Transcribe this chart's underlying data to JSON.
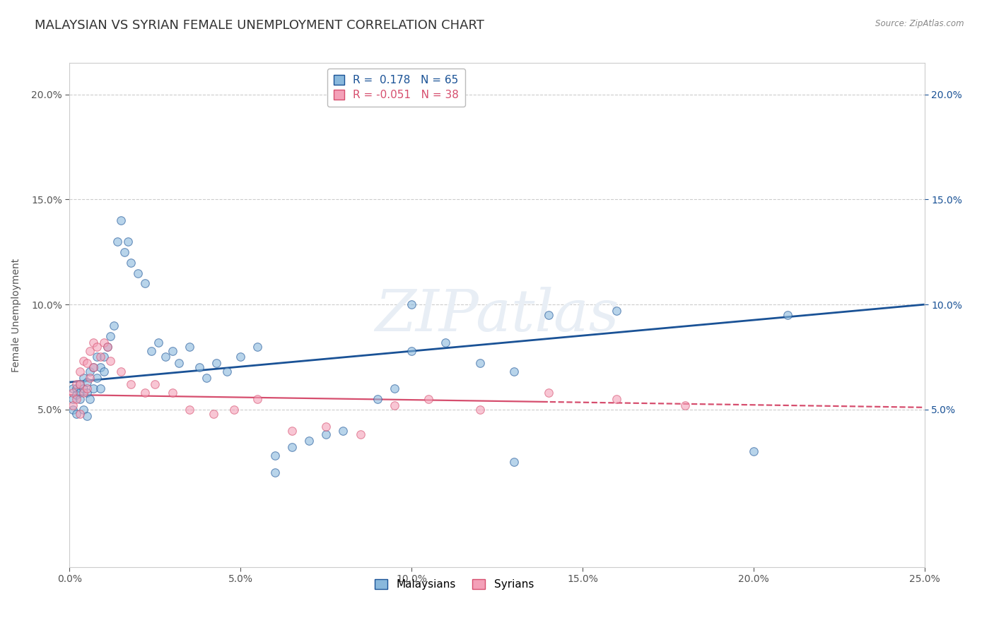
{
  "title": "MALAYSIAN VS SYRIAN FEMALE UNEMPLOYMENT CORRELATION CHART",
  "source_text": "Source: ZipAtlas.com",
  "ylabel": "Female Unemployment",
  "xlim": [
    0.0,
    0.25
  ],
  "ylim": [
    -0.025,
    0.215
  ],
  "yticks": [
    0.05,
    0.1,
    0.15,
    0.2
  ],
  "ytick_labels": [
    "5.0%",
    "10.0%",
    "15.0%",
    "20.0%"
  ],
  "xticks": [
    0.0,
    0.05,
    0.1,
    0.15,
    0.2,
    0.25
  ],
  "xtick_labels": [
    "0.0%",
    "5.0%",
    "10.0%",
    "15.0%",
    "20.0%",
    "25.0%"
  ],
  "malaysian_color": "#89B8DC",
  "syrian_color": "#F4A0B8",
  "malaysian_line_color": "#1A5296",
  "syrian_line_color": "#D64E6E",
  "R_malaysian": 0.178,
  "N_malaysian": 65,
  "R_syrian": -0.051,
  "N_syrian": 38,
  "watermark_text": "ZIPatlas",
  "background_color": "#FFFFFF",
  "grid_color": "#CCCCCC",
  "title_fontsize": 13,
  "axis_label_fontsize": 10,
  "tick_fontsize": 10,
  "legend_fontsize": 11,
  "malaysian_x": [
    0.001,
    0.001,
    0.001,
    0.002,
    0.002,
    0.002,
    0.003,
    0.003,
    0.003,
    0.004,
    0.004,
    0.004,
    0.005,
    0.005,
    0.005,
    0.006,
    0.006,
    0.007,
    0.007,
    0.008,
    0.008,
    0.009,
    0.009,
    0.01,
    0.01,
    0.011,
    0.012,
    0.013,
    0.014,
    0.015,
    0.016,
    0.017,
    0.018,
    0.02,
    0.022,
    0.024,
    0.026,
    0.028,
    0.03,
    0.032,
    0.035,
    0.038,
    0.04,
    0.043,
    0.046,
    0.05,
    0.055,
    0.06,
    0.065,
    0.07,
    0.075,
    0.08,
    0.09,
    0.095,
    0.1,
    0.11,
    0.12,
    0.13,
    0.14,
    0.16,
    0.13,
    0.2,
    0.21,
    0.1,
    0.06
  ],
  "malaysian_y": [
    0.06,
    0.055,
    0.05,
    0.06,
    0.057,
    0.048,
    0.062,
    0.058,
    0.055,
    0.065,
    0.06,
    0.05,
    0.063,
    0.058,
    0.047,
    0.068,
    0.055,
    0.07,
    0.06,
    0.075,
    0.065,
    0.07,
    0.06,
    0.075,
    0.068,
    0.08,
    0.085,
    0.09,
    0.13,
    0.14,
    0.125,
    0.13,
    0.12,
    0.115,
    0.11,
    0.078,
    0.082,
    0.075,
    0.078,
    0.072,
    0.08,
    0.07,
    0.065,
    0.072,
    0.068,
    0.075,
    0.08,
    0.028,
    0.032,
    0.035,
    0.038,
    0.04,
    0.055,
    0.06,
    0.078,
    0.082,
    0.072,
    0.068,
    0.095,
    0.097,
    0.025,
    0.03,
    0.095,
    0.1,
    0.02
  ],
  "syrian_x": [
    0.001,
    0.001,
    0.002,
    0.002,
    0.003,
    0.003,
    0.003,
    0.004,
    0.004,
    0.005,
    0.005,
    0.006,
    0.006,
    0.007,
    0.007,
    0.008,
    0.009,
    0.01,
    0.011,
    0.012,
    0.015,
    0.018,
    0.022,
    0.025,
    0.03,
    0.035,
    0.042,
    0.048,
    0.055,
    0.065,
    0.075,
    0.085,
    0.095,
    0.105,
    0.12,
    0.14,
    0.16,
    0.18
  ],
  "syrian_y": [
    0.058,
    0.052,
    0.062,
    0.055,
    0.068,
    0.062,
    0.048,
    0.073,
    0.058,
    0.072,
    0.06,
    0.078,
    0.065,
    0.082,
    0.07,
    0.08,
    0.075,
    0.082,
    0.08,
    0.073,
    0.068,
    0.062,
    0.058,
    0.062,
    0.058,
    0.05,
    0.048,
    0.05,
    0.055,
    0.04,
    0.042,
    0.038,
    0.052,
    0.055,
    0.05,
    0.058,
    0.055,
    0.052
  ]
}
